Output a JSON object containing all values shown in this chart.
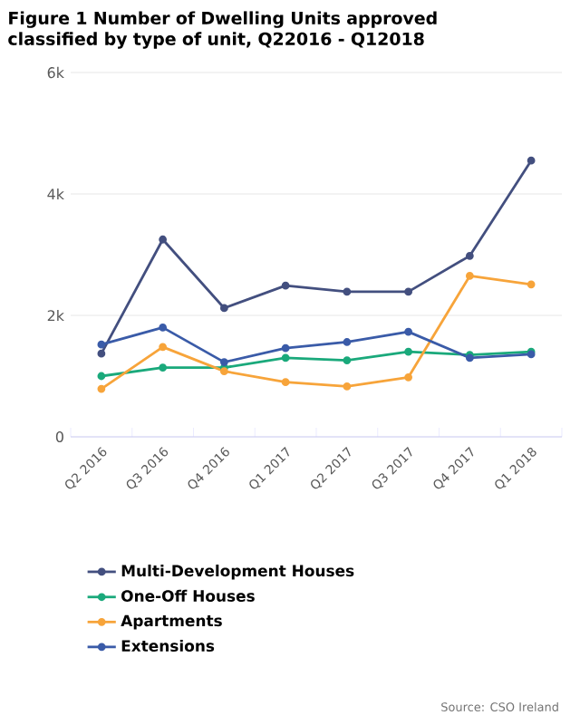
{
  "chart_data": {
    "type": "line",
    "title": "Figure 1 Number of Dwelling Units approved classified by type of unit, Q22016 - Q12018",
    "categories": [
      "Q2 2016",
      "Q3 2016",
      "Q4 2016",
      "Q1 2017",
      "Q2 2017",
      "Q3 2017",
      "Q4 2017",
      "Q1 2018"
    ],
    "series": [
      {
        "name": "Multi-Development Houses",
        "color": "#434f7f",
        "values": [
          1370,
          3250,
          2120,
          2490,
          2390,
          2390,
          2980,
          4550
        ]
      },
      {
        "name": "One-Off Houses",
        "color": "#1aa97b",
        "values": [
          1000,
          1140,
          1140,
          1300,
          1260,
          1400,
          1350,
          1400
        ]
      },
      {
        "name": "Apartments",
        "color": "#f7a43a",
        "values": [
          790,
          1480,
          1080,
          900,
          830,
          980,
          2650,
          2510
        ]
      },
      {
        "name": "Extensions",
        "color": "#3a5ba8",
        "values": [
          1520,
          1800,
          1230,
          1460,
          1560,
          1730,
          1300,
          1360
        ]
      }
    ],
    "ylim": [
      0,
      6000
    ],
    "yticks": [
      {
        "value": 0,
        "label": "0"
      },
      {
        "value": 2000,
        "label": "2k"
      },
      {
        "value": 4000,
        "label": "4k"
      },
      {
        "value": 6000,
        "label": "6k"
      }
    ],
    "grid": "y",
    "legend": "bottom",
    "marker": "circle",
    "line_style": "solid",
    "annotations": [
      "Source: CSO Ireland"
    ]
  }
}
